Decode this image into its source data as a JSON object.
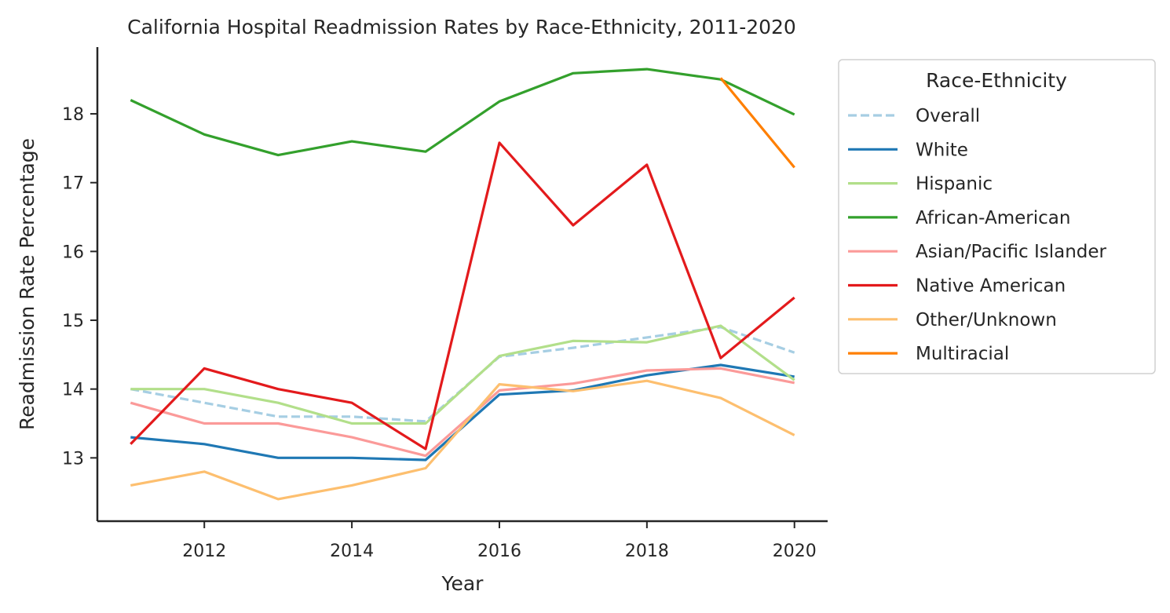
{
  "chart_data": {
    "type": "line",
    "title": "California Hospital Readmission Rates by Race-Ethnicity, 2011-2020",
    "xlabel": "Year",
    "ylabel": "Readmission Rate Percentage",
    "xlim": [
      2010.55,
      2020.45
    ],
    "ylim": [
      12.08,
      18.97
    ],
    "xticks": [
      2012,
      2014,
      2016,
      2018,
      2020
    ],
    "yticks": [
      13,
      14,
      15,
      16,
      17,
      18
    ],
    "grid": false,
    "legend": {
      "title": "Race-Ethnicity",
      "placement": "outside-right-top"
    },
    "series": [
      {
        "name": "Overall",
        "color": "#a6cee3",
        "dashed": true,
        "x": [
          2011,
          2012,
          2013,
          2014,
          2015,
          2016,
          2017,
          2018,
          2019,
          2020
        ],
        "y": [
          14.0,
          13.8,
          13.6,
          13.6,
          13.53,
          14.47,
          14.6,
          14.75,
          14.9,
          14.53
        ]
      },
      {
        "name": "White",
        "color": "#1f78b4",
        "dashed": false,
        "x": [
          2011,
          2012,
          2013,
          2014,
          2015,
          2016,
          2017,
          2018,
          2019,
          2020
        ],
        "y": [
          13.3,
          13.2,
          13.0,
          13.0,
          12.97,
          13.92,
          13.98,
          14.2,
          14.35,
          14.18
        ]
      },
      {
        "name": "Hispanic",
        "color": "#b2df8a",
        "dashed": false,
        "x": [
          2011,
          2012,
          2013,
          2014,
          2015,
          2016,
          2017,
          2018,
          2019,
          2020
        ],
        "y": [
          14.0,
          14.0,
          13.8,
          13.5,
          13.5,
          14.48,
          14.7,
          14.68,
          14.92,
          14.13
        ]
      },
      {
        "name": "African-American",
        "color": "#33a02c",
        "dashed": false,
        "x": [
          2011,
          2012,
          2013,
          2014,
          2015,
          2016,
          2017,
          2018,
          2019,
          2020
        ],
        "y": [
          18.2,
          17.7,
          17.4,
          17.6,
          17.45,
          18.18,
          18.59,
          18.65,
          18.5,
          17.99
        ]
      },
      {
        "name": "Asian/Pacific Islander",
        "color": "#fb9a99",
        "dashed": false,
        "x": [
          2011,
          2012,
          2013,
          2014,
          2015,
          2016,
          2017,
          2018,
          2019,
          2020
        ],
        "y": [
          13.8,
          13.5,
          13.5,
          13.3,
          13.03,
          13.98,
          14.08,
          14.27,
          14.3,
          14.09
        ]
      },
      {
        "name": "Native American",
        "color": "#e31a1c",
        "dashed": false,
        "x": [
          2011,
          2012,
          2013,
          2014,
          2015,
          2016,
          2017,
          2018,
          2019,
          2020
        ],
        "y": [
          13.2,
          14.3,
          14.0,
          13.8,
          13.13,
          17.58,
          16.38,
          17.26,
          14.45,
          15.33
        ]
      },
      {
        "name": "Other/Unknown",
        "color": "#fdbf6f",
        "dashed": false,
        "x": [
          2011,
          2012,
          2013,
          2014,
          2015,
          2016,
          2017,
          2018,
          2019,
          2020
        ],
        "y": [
          12.6,
          12.8,
          12.4,
          12.6,
          12.85,
          14.07,
          13.97,
          14.12,
          13.87,
          13.33
        ]
      },
      {
        "name": "Multiracial",
        "color": "#ff7f00",
        "dashed": false,
        "x": [
          2019,
          2020
        ],
        "y": [
          18.52,
          17.22
        ]
      }
    ]
  }
}
